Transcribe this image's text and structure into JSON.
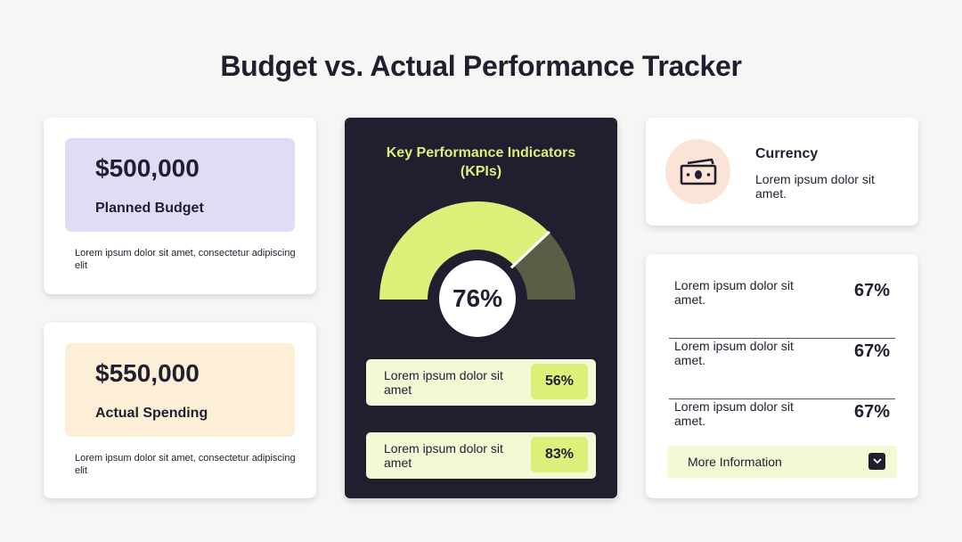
{
  "title": "Budget vs. Actual Performance Tracker",
  "colors": {
    "dark": "#1f1f30",
    "lime": "#dcf07a",
    "lime_light": "#f3f9d4",
    "lavender": "#deddf5",
    "peach": "#fdeed8",
    "salmon_light": "#fbe3d8",
    "gauge_remaining": "#5a5e46"
  },
  "budget_card": {
    "amount": "$500,000",
    "label": "Planned Budget",
    "description": "Lorem ipsum dolor sit amet, consectetur adipiscing elit"
  },
  "spending_card": {
    "amount": "$550,000",
    "label": "Actual Spending",
    "description": "Lorem ipsum dolor sit amet, consectetur adipiscing elit"
  },
  "kpi": {
    "title_line1": "Key Performance Indicators",
    "title_line2": "(KPIs)",
    "gauge_value": 0.76,
    "gauge_label": "76%",
    "rows": [
      {
        "text": "Lorem ipsum dolor sit amet",
        "value": "56%"
      },
      {
        "text": "Lorem ipsum dolor sit amet",
        "value": "83%"
      }
    ]
  },
  "currency": {
    "icon": "cash-icon",
    "title": "Currency",
    "description": "Lorem ipsum dolor sit amet."
  },
  "metrics": {
    "rows": [
      {
        "text": "Lorem ipsum dolor sit amet.",
        "value": "67%"
      },
      {
        "text": "Lorem ipsum dolor sit amet.",
        "value": "67%"
      },
      {
        "text": "Lorem ipsum dolor sit amet.",
        "value": "67%"
      }
    ],
    "more_info_label": "More Information",
    "more_info_icon": "chevron-down-icon"
  }
}
